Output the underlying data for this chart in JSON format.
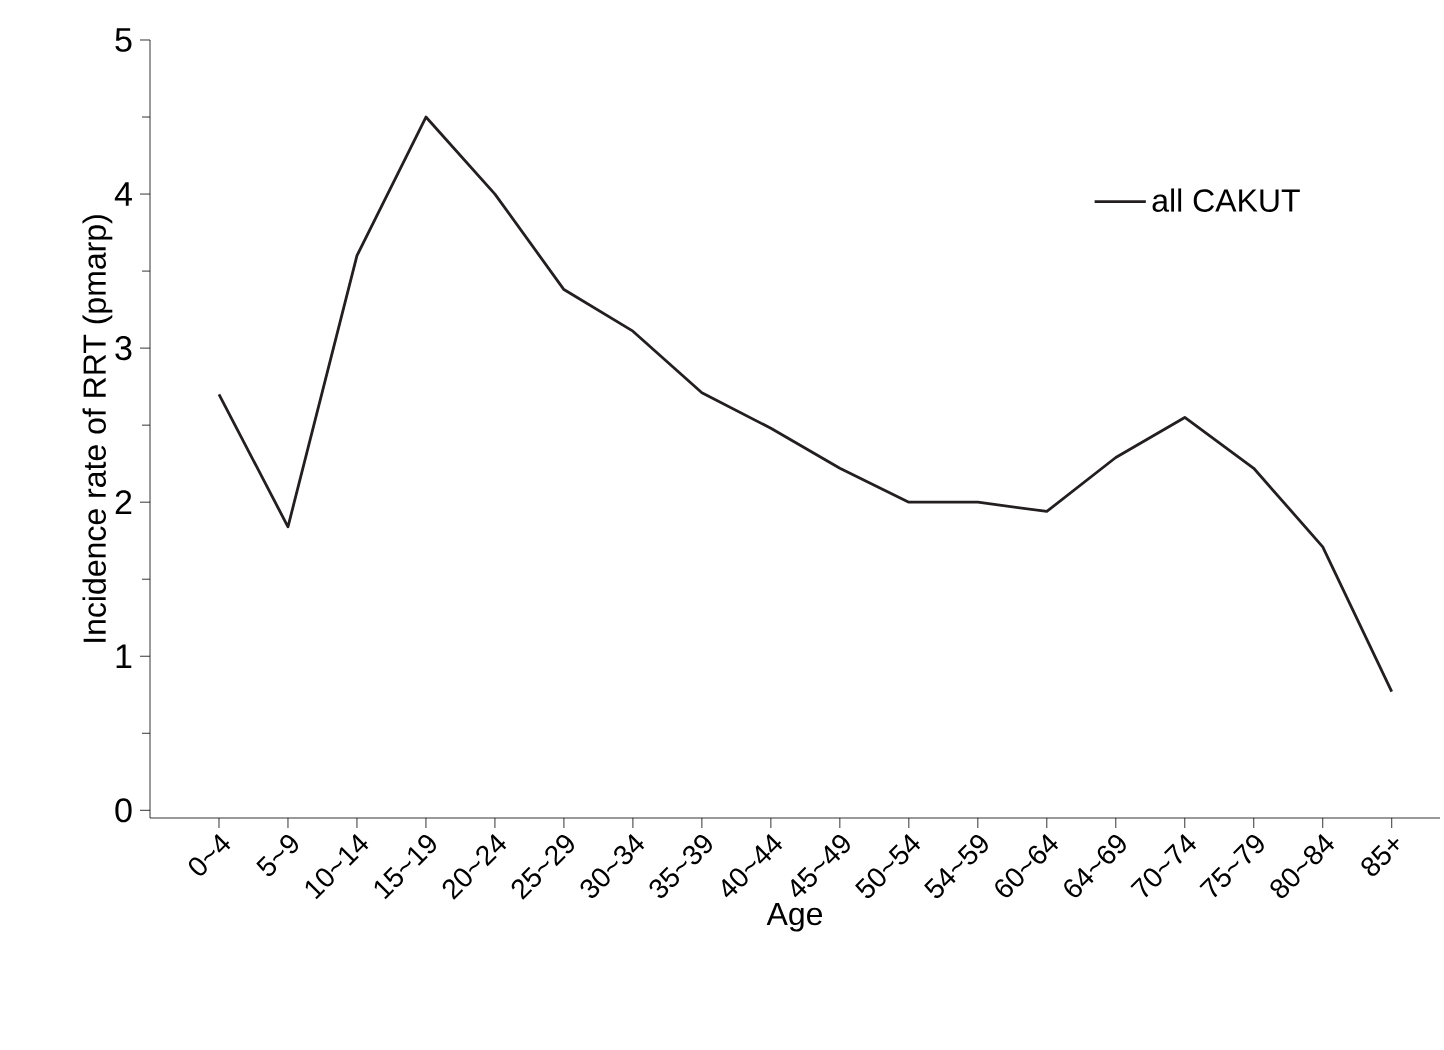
{
  "chart_data": {
    "type": "line",
    "xlabel": "Age",
    "ylabel": "Incidence rate of RRT (pmarp)",
    "categories": [
      "0~4",
      "5~9",
      "10~14",
      "15~19",
      "20~24",
      "25~29",
      "30~34",
      "35~39",
      "40~44",
      "45~49",
      "50~54",
      "54~59",
      "60~64",
      "64~69",
      "70~74",
      "75~79",
      "80~84",
      "85+"
    ],
    "series": [
      {
        "name": "all CAKUT",
        "color": "#231f20",
        "values": [
          2.7,
          1.84,
          3.6,
          4.5,
          4.0,
          3.38,
          3.11,
          2.71,
          2.48,
          2.22,
          2.0,
          2.0,
          1.94,
          2.29,
          2.55,
          2.22,
          1.71,
          0.77
        ]
      }
    ],
    "ylim": [
      -0.05,
      5
    ],
    "yticks": [
      0,
      1,
      2,
      3,
      4,
      5
    ],
    "legend": "top right",
    "grid": false,
    "marker": "none",
    "line_style": "solid"
  }
}
